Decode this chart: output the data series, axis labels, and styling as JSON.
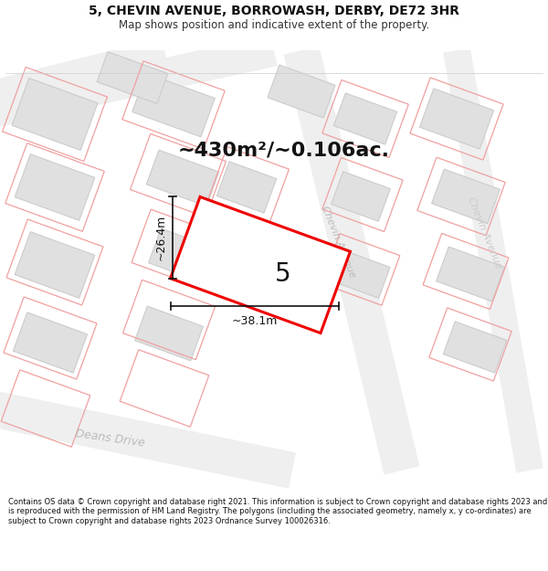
{
  "title_line1": "5, CHEVIN AVENUE, BORROWASH, DERBY, DE72 3HR",
  "title_line2": "Map shows position and indicative extent of the property.",
  "area_text": "~430m²/~0.106ac.",
  "plot_number": "5",
  "width_label": "~38.1m",
  "height_label": "~26.4m",
  "footer_text": "Contains OS data © Crown copyright and database right 2021. This information is subject to Crown copyright and database rights 2023 and is reproduced with the permission of HM Land Registry. The polygons (including the associated geometry, namely x, y co-ordinates) are subject to Crown copyright and database rights 2023 Ordnance Survey 100026316.",
  "bg_color": "#ffffff",
  "map_bg": "#ffffff",
  "road_fill": "#efefef",
  "building_fill": "#e0e0e0",
  "building_stroke": "#cccccc",
  "parcel_stroke": "#f0a0a0",
  "red_outline": "#ee0000",
  "road_label_color": "#aaaaaa",
  "dim_line_color": "#111111",
  "title_fontsize": 10,
  "subtitle_fontsize": 8.5,
  "area_fontsize": 16,
  "footer_fontsize": 6.0
}
